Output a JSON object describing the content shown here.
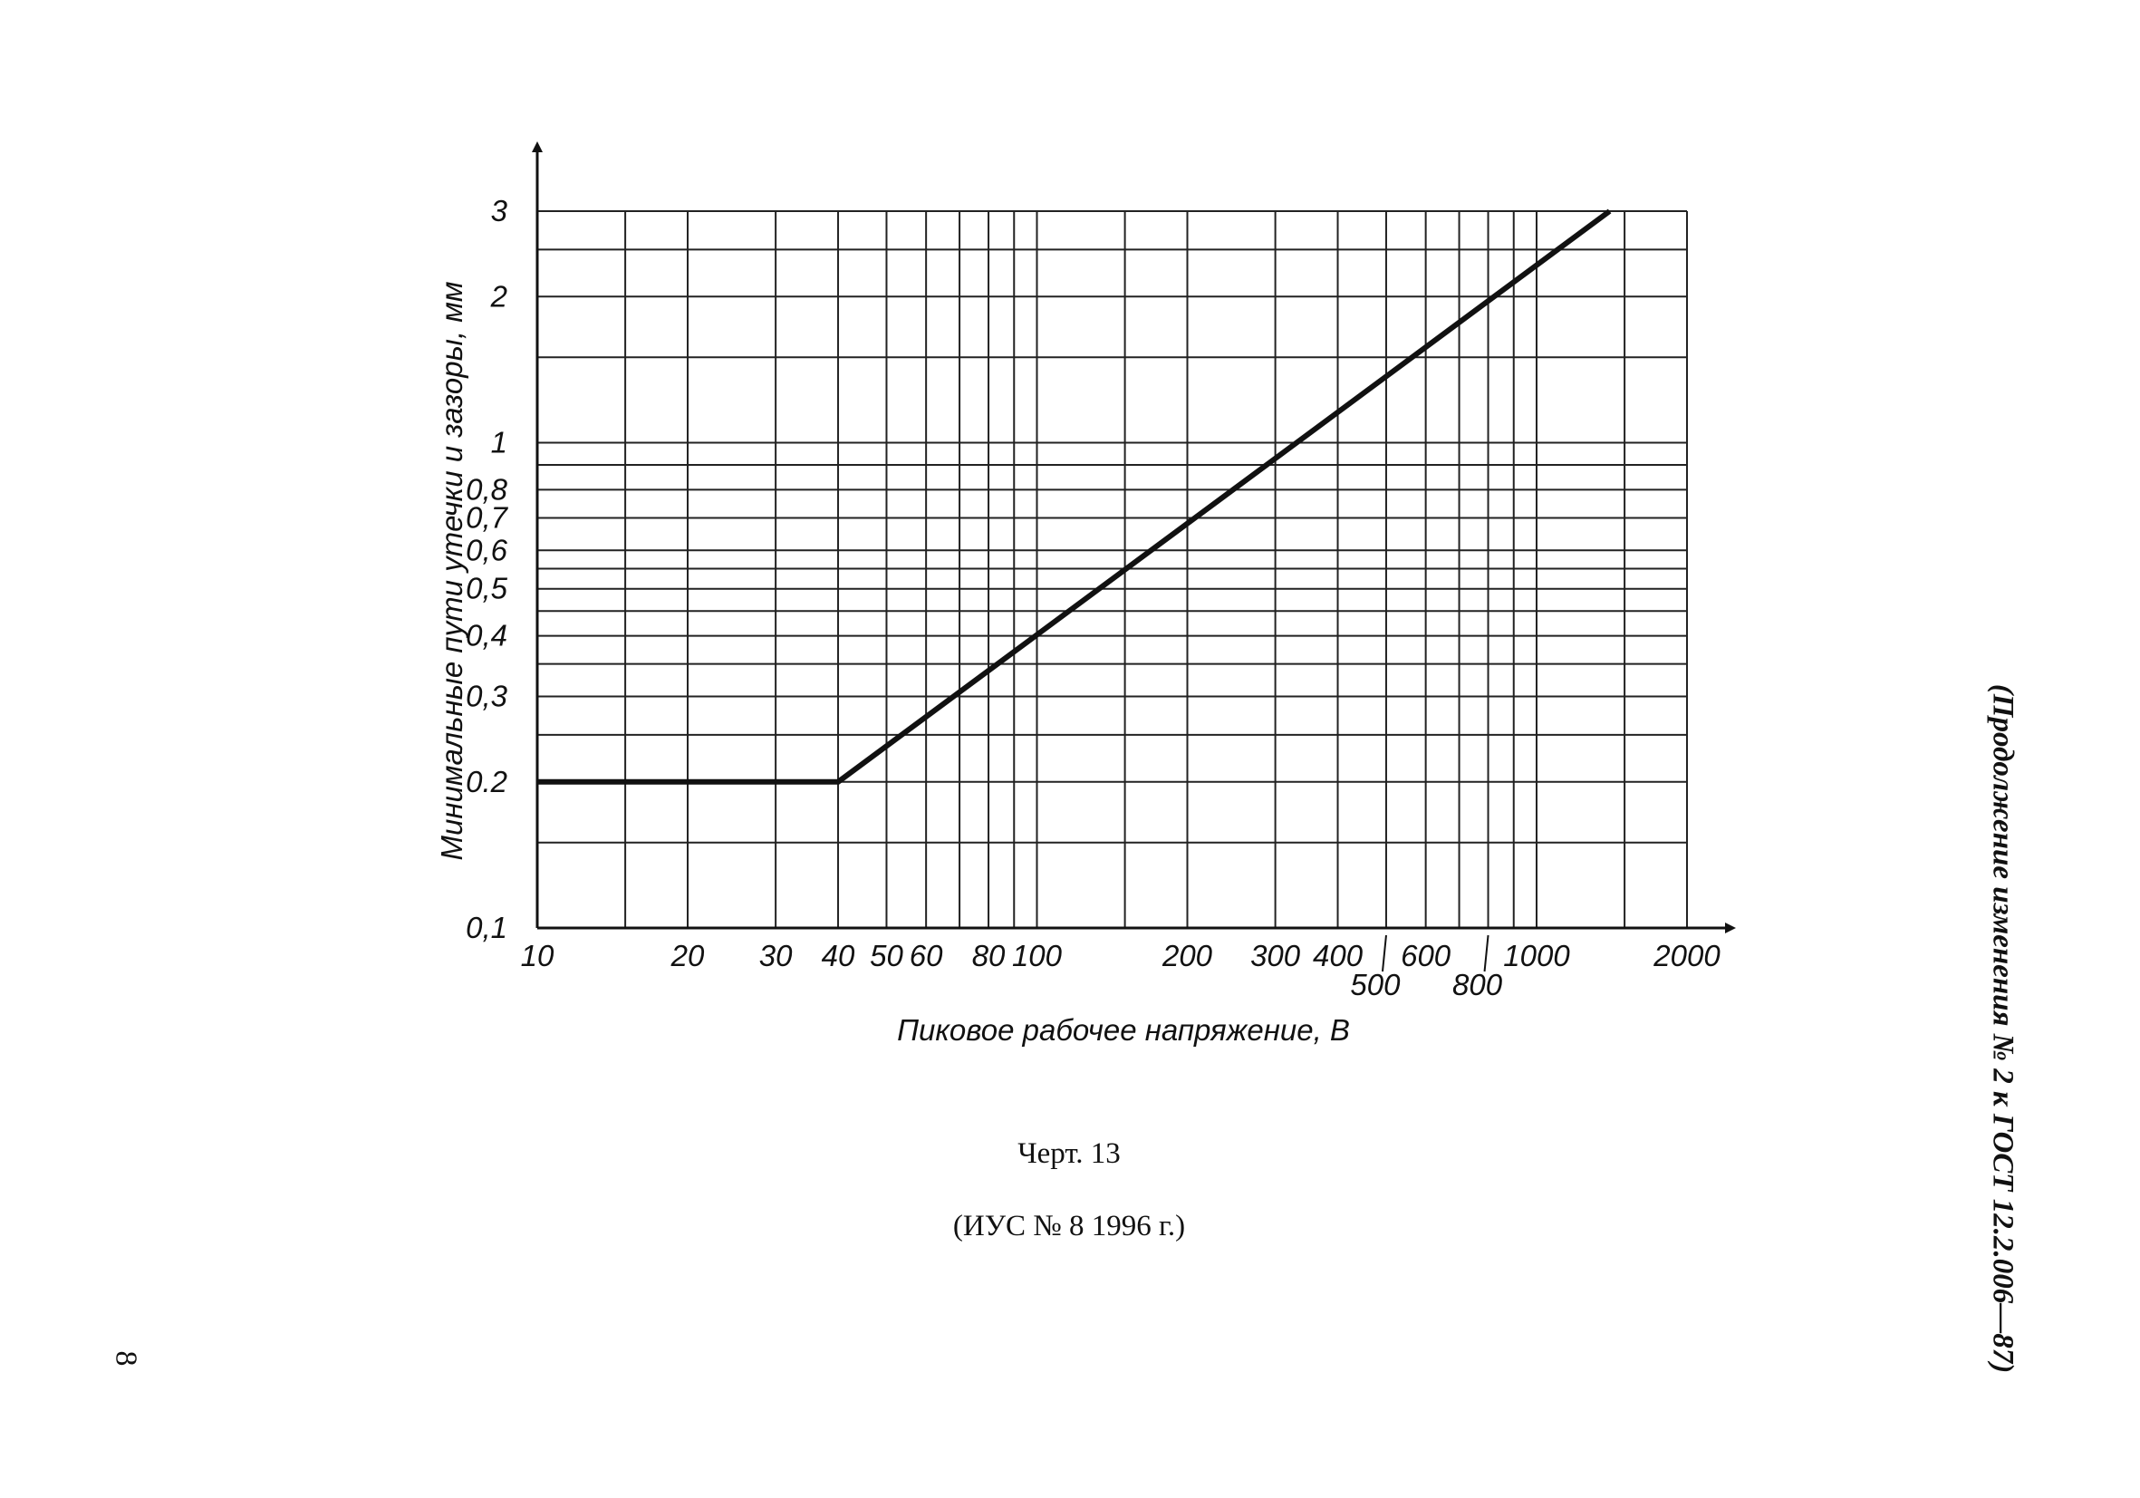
{
  "chart_data": {
    "type": "line",
    "x_scale": "log",
    "y_scale": "log",
    "xlim": [
      10,
      2000
    ],
    "ylim": [
      0.1,
      3
    ],
    "grid": true,
    "xlabel": "Пиковое рабочее напряжение, В",
    "ylabel": "Минимальные пути утечки и зазоры, мм",
    "x_tick_labels": [
      "10",
      "20",
      "30",
      "40",
      "50",
      "60",
      "80",
      "100",
      "200",
      "300",
      "400",
      "500",
      "600",
      "800",
      "1000",
      "2000"
    ],
    "y_tick_labels": [
      "0,1",
      "0.2",
      "0,3",
      "0,4",
      "0,5",
      "0,6",
      "0,7",
      "0,8",
      "1",
      "2",
      "3"
    ],
    "series": [
      {
        "x": [
          10,
          40,
          1400
        ],
        "y": [
          0.2,
          0.2,
          3
        ]
      }
    ]
  },
  "caption": {
    "title": "Черт. 13",
    "reference": "(ИУС № 8 1996 г.)"
  },
  "side_note": "(Продолжение изменения № 2 к ГОСТ 12.2.006—87)",
  "page_number": "8"
}
